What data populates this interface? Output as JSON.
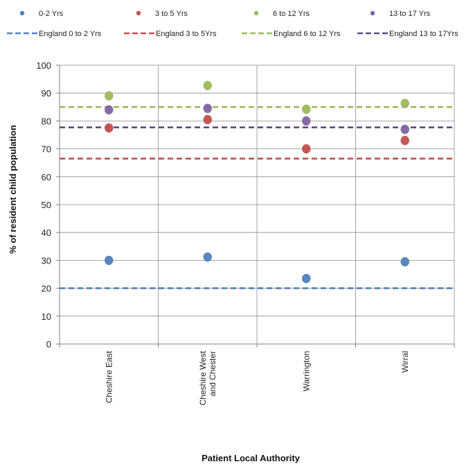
{
  "chart_data": {
    "type": "scatter",
    "title": "",
    "xlabel": "Patient Local Authority",
    "ylabel": "% of resident  child  population",
    "ylim": [
      0,
      100
    ],
    "yticks": [
      0,
      10,
      20,
      30,
      40,
      50,
      60,
      70,
      80,
      90,
      100
    ],
    "categories": [
      [
        "Cheshire East"
      ],
      [
        "Cheshire West",
        "and Chester"
      ],
      [
        "Warrington"
      ],
      [
        "Wirral"
      ]
    ],
    "grid": true,
    "legend_position": "top",
    "series": [
      {
        "name": "0-2 Yrs",
        "color": "#4f81bd",
        "values": [
          30,
          31.2,
          23.5,
          29.5
        ]
      },
      {
        "name": "3 to 5 Yrs",
        "color": "#c0504d",
        "values": [
          77.5,
          80.5,
          70,
          73
        ]
      },
      {
        "name": "6 to 12 Yrs",
        "color": "#9bbb59",
        "values": [
          89,
          92.7,
          84.2,
          86.3
        ]
      },
      {
        "name": "13 to 17 Yrs",
        "color": "#8064a2",
        "values": [
          84,
          84.5,
          80,
          77
        ]
      }
    ],
    "reference_lines": [
      {
        "name": "England 0 to 2 Yrs",
        "color": "#4f81bd",
        "value": 20
      },
      {
        "name": "England 3 to 5Yrs",
        "color": "#c0504d",
        "value": 66.5
      },
      {
        "name": "England 6 to 12 Yrs",
        "color": "#9bbb59",
        "value": 85
      },
      {
        "name": "England 13 to 17Yrs",
        "color": "#604a7b",
        "value": 77.7
      }
    ]
  }
}
